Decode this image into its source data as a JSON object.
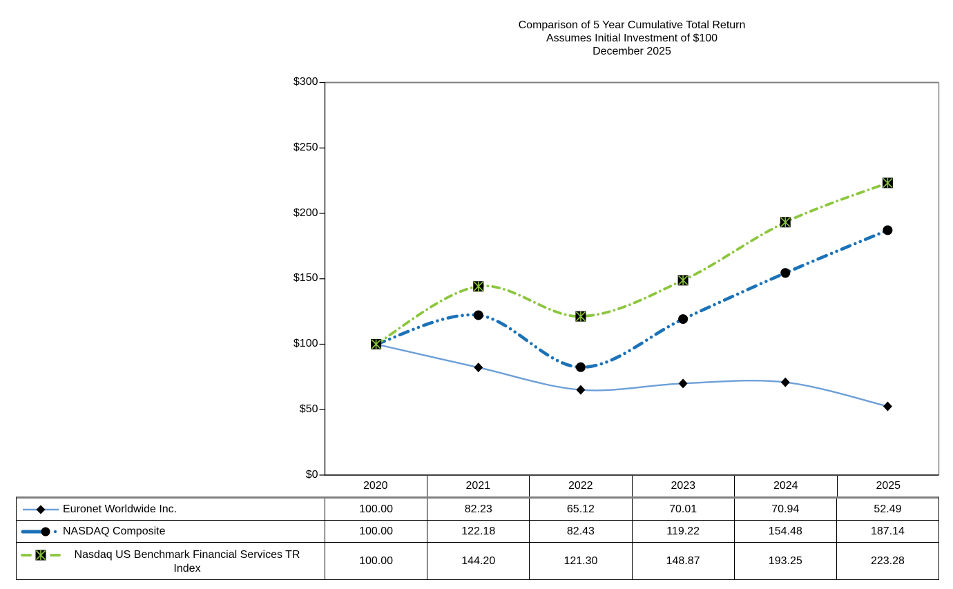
{
  "title": {
    "line1": "Comparison of 5 Year Cumulative Total Return",
    "line2": "Assumes Initial Investment of $100",
    "line3": "December 2025"
  },
  "chart_data": {
    "type": "line",
    "title": "Comparison of 5 Year Cumulative Total Return — Assumes Initial Investment of $100 — December 2025",
    "categories": [
      "2020",
      "2021",
      "2022",
      "2023",
      "2024",
      "2025"
    ],
    "y_axis": {
      "min": 0,
      "max": 300,
      "step": 50,
      "tick_labels": [
        "$0",
        "$50",
        "$100",
        "$150",
        "$200",
        "$250",
        "$300"
      ]
    },
    "grid": false,
    "legend_position": "table-left",
    "series": [
      {
        "name": "Euronet Worldwide Inc.",
        "color": "#6D9FD8",
        "marker": "diamond",
        "marker_color": "#000000",
        "line_style": "solid",
        "line_width": 2.4,
        "values": [
          100.0,
          82.23,
          65.12,
          70.01,
          70.94,
          52.49
        ]
      },
      {
        "name": "NASDAQ Composite",
        "color": "#1B72B8",
        "marker": "circle",
        "marker_color": "#000000",
        "line_style": "long-dash-dot-dot",
        "line_width": 4.6,
        "values": [
          100.0,
          122.18,
          82.43,
          119.22,
          154.48,
          187.14
        ]
      },
      {
        "name": "Nasdaq US Benchmark Financial Services TR Index",
        "color": "#8CC63E",
        "marker": "square-x",
        "marker_color": "#000000",
        "line_style": "dash-dot",
        "line_width": 3.8,
        "values": [
          100.0,
          144.2,
          121.3,
          148.87,
          193.25,
          223.28
        ]
      }
    ]
  },
  "table": {
    "year_headers": [
      "2020",
      "2021",
      "2022",
      "2023",
      "2024",
      "2025"
    ],
    "rows": [
      {
        "label": "Euronet Worldwide Inc.",
        "values": [
          "100.00",
          "82.23",
          "65.12",
          "70.01",
          "70.94",
          "52.49"
        ]
      },
      {
        "label": "NASDAQ Composite",
        "values": [
          "100.00",
          "122.18",
          "82.43",
          "119.22",
          "154.48",
          "187.14"
        ]
      },
      {
        "label": "Nasdaq US Benchmark Financial Services TR Index",
        "values": [
          "100.00",
          "144.20",
          "121.30",
          "148.87",
          "193.25",
          "223.28"
        ]
      }
    ]
  },
  "colors": {
    "axis": "#000000",
    "plot_border": "#808080",
    "table_border": "#000000"
  }
}
